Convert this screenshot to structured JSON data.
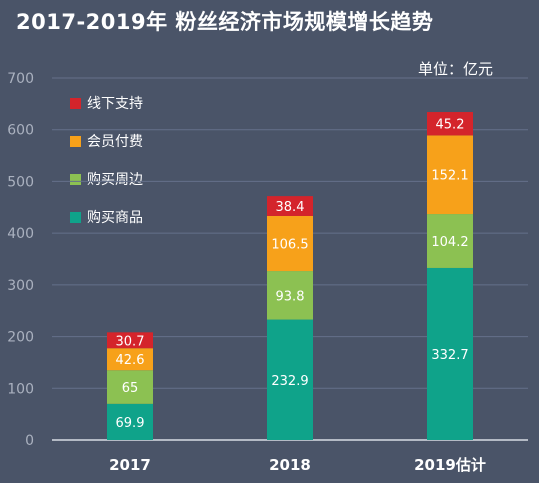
{
  "title": "2017-2019年 粉丝经济市场规模增长趋势",
  "unit": "单位：亿元",
  "colors": {
    "background": "#4a5468",
    "grid": "#65708a",
    "axis": "#d8dce4",
    "tick_text": "#aab1bf",
    "category_text": "#ffffff",
    "value_text": "#ffffff"
  },
  "chart_data": {
    "type": "bar",
    "stacked": true,
    "categories": [
      "2017",
      "2018",
      "2019估计"
    ],
    "ylim": [
      0,
      700
    ],
    "yticks": [
      0,
      100,
      200,
      300,
      400,
      500,
      600,
      700
    ],
    "grid": true,
    "legend_position": "top-left",
    "series": [
      {
        "name": "购买商品",
        "color": "#0fa38a",
        "values": [
          69.9,
          232.9,
          332.7
        ]
      },
      {
        "name": "购买周边",
        "color": "#8cc152",
        "values": [
          65,
          93.8,
          104.2
        ]
      },
      {
        "name": "会员付费",
        "color": "#f7a11a",
        "values": [
          42.6,
          106.5,
          152.1
        ]
      },
      {
        "name": "线下支持",
        "color": "#d4242b",
        "values": [
          30.7,
          38.4,
          45.2
        ]
      }
    ],
    "legend_order": [
      "线下支持",
      "会员付费",
      "购买周边",
      "购买商品"
    ]
  }
}
